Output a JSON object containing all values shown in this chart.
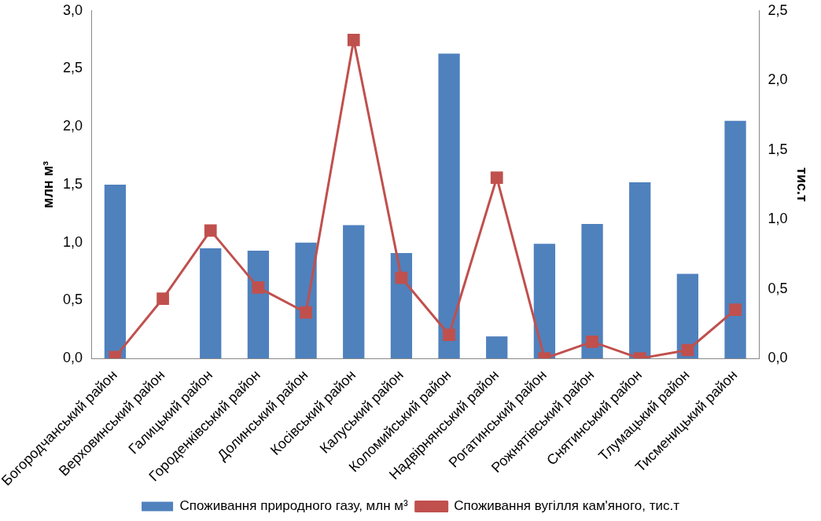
{
  "chart_data": {
    "type": "bar",
    "ylabel": "млн м³",
    "y2label": "тис.т",
    "categories": [
      "Богородчанський район",
      "Верховинський район",
      "Галицький район",
      "Городенківський район",
      "Долинський район",
      "Косівський район",
      "Калуський район",
      "Коломийський район",
      "Надвірнянський район",
      "Рогатинський район",
      "Рожнятівський район",
      "Снятинський район",
      "Тлумацький район",
      "Тисменицький район"
    ],
    "series": [
      {
        "name": "Споживання природного газу, млн м³",
        "color": "#4f81bd",
        "values": [
          1.5,
          0,
          0.95,
          0.93,
          1.0,
          1.15,
          0.91,
          2.63,
          0.19,
          0.99,
          1.16,
          1.52,
          0.73,
          2.05
        ]
      },
      {
        "name": "Споживання вугілля кам'яного, тис.т",
        "color": "#c0504d",
        "type": "line",
        "axis": "y2",
        "marker": "square",
        "values": [
          0.01,
          0.43,
          0.92,
          0.51,
          0.33,
          2.29,
          0.58,
          0.17,
          1.3,
          0.0,
          0.12,
          0.0,
          0.06,
          0.35
        ]
      }
    ],
    "ylim": [
      0,
      3
    ],
    "yticks": [
      {
        "value": 0,
        "label": "0,0"
      },
      {
        "value": 0.5,
        "label": "0,5"
      },
      {
        "value": 1,
        "label": "1,0"
      },
      {
        "value": 1.5,
        "label": "1,5"
      },
      {
        "value": 2,
        "label": "2,0"
      },
      {
        "value": 2.5,
        "label": "2,5"
      },
      {
        "value": 3,
        "label": "3,0"
      }
    ],
    "y2lim": [
      0,
      2.5
    ],
    "y2ticks": [
      {
        "value": 0,
        "label": "0,0"
      },
      {
        "value": 0.5,
        "label": "0,5"
      },
      {
        "value": 1,
        "label": "1,0"
      },
      {
        "value": 1.5,
        "label": "1,5"
      },
      {
        "value": 2,
        "label": "2,0"
      },
      {
        "value": 2.5,
        "label": "2,5"
      }
    ],
    "grid": false,
    "legend": "bottom"
  }
}
